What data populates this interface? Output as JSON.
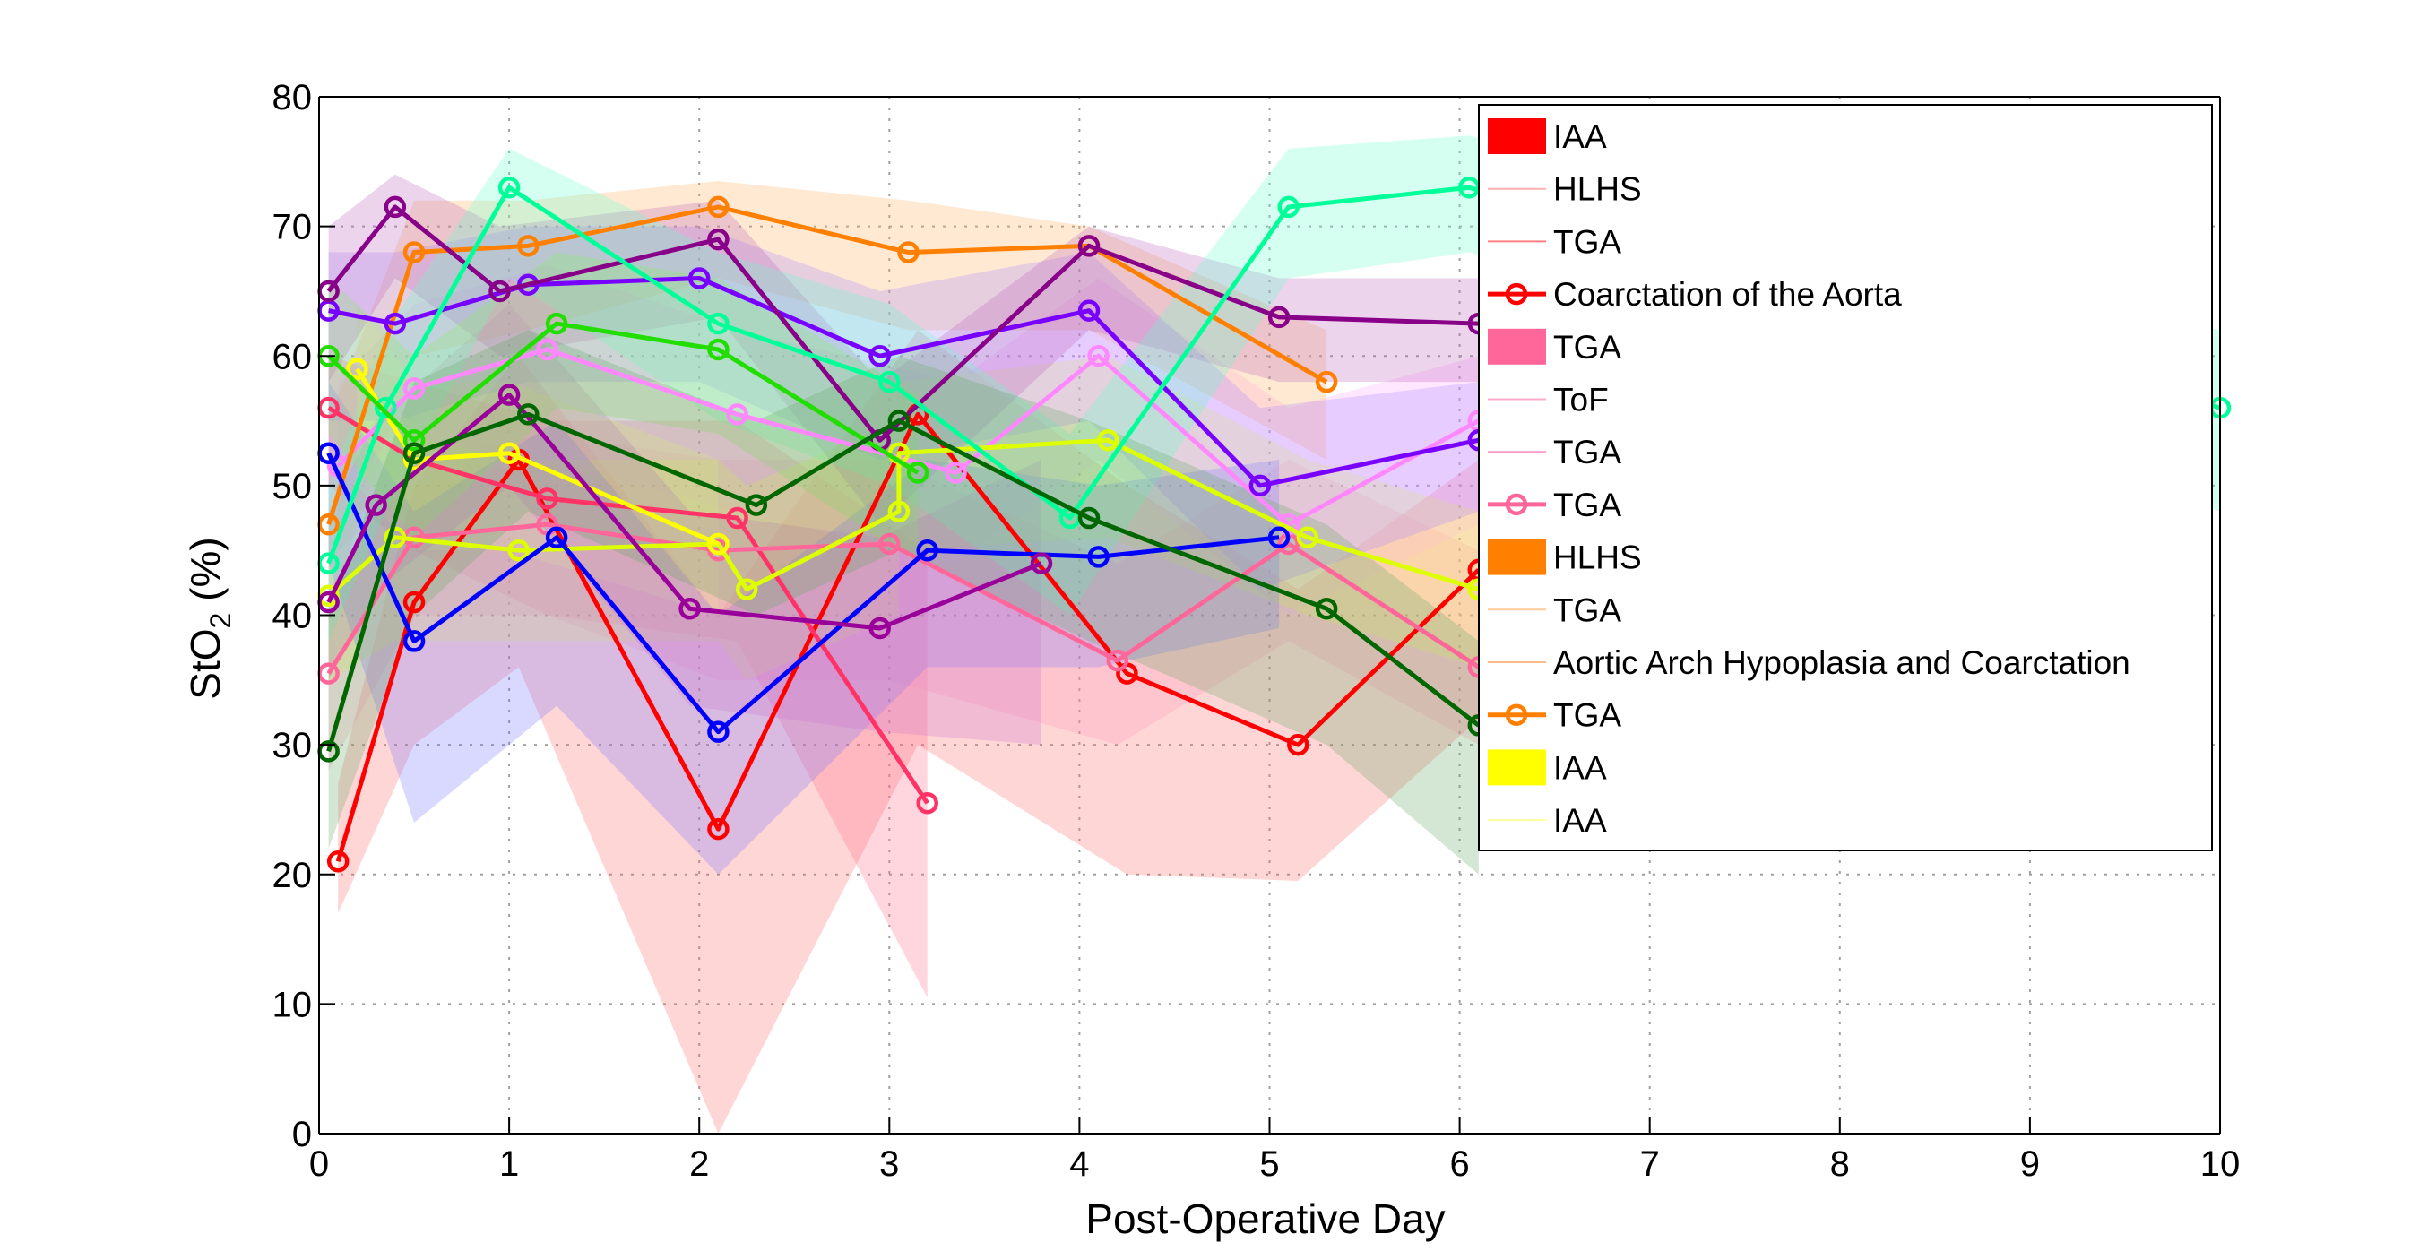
{
  "chart_data": {
    "type": "line",
    "xlabel": "Post-Operative Day",
    "ylabel": "StO",
    "ylabel_sub": "2",
    "ylabel_suffix": " (%)",
    "xlim": [
      0,
      10
    ],
    "ylim": [
      0,
      80
    ],
    "xticks": [
      "0",
      "1",
      "2",
      "3",
      "4",
      "5",
      "6",
      "7",
      "8",
      "9",
      "10"
    ],
    "yticks": [
      "0",
      "10",
      "20",
      "30",
      "40",
      "50",
      "60",
      "70",
      "80"
    ],
    "grid": true,
    "legend_position": "top-right",
    "series": [
      {
        "name": "Coarctation of the Aorta",
        "color": "#ff0000",
        "fill": "#ff6a6a",
        "x": [
          0.1,
          0.5,
          1.05,
          2.1,
          3.15,
          4.25,
          5.15,
          6.1
        ],
        "y": [
          21,
          41,
          52,
          23.5,
          55.5,
          35.5,
          30,
          43.5
        ],
        "lo": [
          17,
          30,
          36,
          0,
          30,
          20,
          19.5,
          32
        ],
        "hi": [
          27,
          50,
          60,
          40,
          62,
          50,
          42,
          52
        ]
      },
      {
        "name": "TGA",
        "color": "#ff3366",
        "fill": "#ff6a8a",
        "x": [
          0.05,
          0.5,
          1.2,
          2.2,
          3.2
        ],
        "y": [
          56,
          52,
          49,
          47.5,
          25.5
        ],
        "lo": [
          50,
          45,
          40,
          38,
          10.5
        ],
        "hi": [
          60,
          58,
          55,
          55,
          45
        ]
      },
      {
        "name": "TGA",
        "color": "#ff6699",
        "fill": "#ff99bb",
        "x": [
          0.05,
          0.5,
          1.2,
          2.1,
          3.0,
          4.2,
          5.1,
          6.1
        ],
        "y": [
          35.5,
          46,
          47,
          45,
          45.5,
          36.5,
          45.5,
          36
        ],
        "lo": [
          28,
          40,
          40,
          35,
          35,
          30,
          38,
          30
        ],
        "hi": [
          42,
          52,
          54,
          52,
          52,
          44,
          52,
          45
        ]
      },
      {
        "name": "ToF",
        "color": "#ff88ff",
        "fill": "#ffaaff",
        "x": [
          0.1,
          0.5,
          1.2,
          2.2,
          3.35,
          4.1,
          5.1,
          6.1
        ],
        "y": [
          51.5,
          57.5,
          60.5,
          55.5,
          51,
          60,
          47,
          55
        ],
        "lo": [
          45,
          50,
          52,
          48,
          44,
          52,
          40,
          47
        ],
        "hi": [
          58,
          64,
          67,
          62,
          58,
          66,
          56,
          60
        ]
      },
      {
        "name": "HLHS",
        "color": "#ff8000",
        "fill": "#ffb060",
        "x": [
          0.05,
          0.5,
          1.1,
          2.1,
          3.1,
          4.05,
          5.3
        ],
        "y": [
          47,
          68,
          68.5,
          71.5,
          68,
          68.5,
          58
        ],
        "lo": [
          40,
          60,
          62,
          66,
          62,
          62,
          52
        ],
        "hi": [
          55,
          72,
          72,
          73.5,
          72,
          70,
          62
        ]
      },
      {
        "name": "IAA",
        "color": "#ddff00",
        "fill": "#eeff55",
        "x": [
          0.05,
          0.4,
          1.05,
          2.1,
          2.25,
          3.05,
          3.05,
          4.15,
          5.2,
          6.1
        ],
        "y": [
          41.5,
          46,
          45,
          45.5,
          42,
          48,
          52.5,
          53.5,
          46,
          42
        ],
        "lo": [
          35,
          38,
          38,
          38,
          35,
          40,
          45,
          46,
          40,
          36
        ],
        "hi": [
          48,
          54,
          52,
          52,
          50,
          55,
          58,
          60,
          52,
          48
        ]
      },
      {
        "name": "",
        "color": "#ffff00",
        "fill": "#ffff88",
        "x": [
          0.2,
          0.5,
          1.0,
          2.1
        ],
        "y": [
          59,
          52,
          52.5,
          45.5
        ],
        "lo": [
          50,
          45,
          45,
          40
        ],
        "hi": [
          64,
          58,
          58,
          52
        ]
      },
      {
        "name": "",
        "color": "#0000ff",
        "fill": "#7777ff",
        "x": [
          0.05,
          0.5,
          1.25,
          2.1,
          3.2,
          4.1,
          5.05
        ],
        "y": [
          52.5,
          38,
          46,
          31,
          45,
          44.5,
          46
        ],
        "lo": [
          44,
          24,
          33,
          20,
          36,
          36,
          39
        ],
        "hi": [
          58,
          48,
          55,
          40,
          52,
          50,
          52
        ]
      },
      {
        "name": "",
        "color": "#7700ff",
        "fill": "#aa88ff",
        "x": [
          0.05,
          0.4,
          1.1,
          2.0,
          2.95,
          4.05,
          4.95,
          6.1
        ],
        "y": [
          63.5,
          62.5,
          65.5,
          66,
          60,
          63.5,
          50,
          53.5
        ],
        "lo": [
          55,
          55,
          58,
          58,
          52,
          55,
          42,
          48
        ],
        "hi": [
          68,
          68,
          70,
          70,
          65,
          68,
          56,
          58
        ]
      },
      {
        "name": "",
        "color": "#880088",
        "fill": "#bb66bb",
        "x": [
          0.05,
          0.4,
          0.95,
          2.1,
          2.95,
          4.05,
          5.05,
          6.1
        ],
        "y": [
          65,
          71.5,
          65,
          69,
          53.5,
          68.5,
          63,
          62.5
        ],
        "lo": [
          58,
          66,
          60,
          63,
          47,
          62,
          58,
          58
        ],
        "hi": [
          70,
          74,
          70,
          72,
          58,
          70,
          66,
          66
        ]
      },
      {
        "name": "",
        "color": "#990099",
        "fill": "#cc77cc",
        "x": [
          0.05,
          0.3,
          1.0,
          1.95,
          2.95,
          3.8
        ],
        "y": [
          41,
          48.5,
          57,
          40.5,
          39,
          44
        ],
        "lo": [
          35,
          42,
          50,
          33,
          31,
          30
        ],
        "hi": [
          48,
          55,
          64,
          48,
          46,
          52
        ]
      },
      {
        "name": "",
        "color": "#00ff99",
        "fill": "#66ffcc",
        "x": [
          0.05,
          0.35,
          1.0,
          2.1,
          3.0,
          3.95,
          5.1,
          6.05,
          10.0
        ],
        "y": [
          44,
          56,
          73,
          62.5,
          58,
          47.5,
          71.5,
          73,
          56
        ],
        "lo": [
          38,
          48,
          66,
          55,
          50,
          40,
          66,
          68,
          48
        ],
        "hi": [
          50,
          62,
          76,
          68,
          64,
          54,
          76,
          77,
          62
        ]
      },
      {
        "name": "",
        "color": "#22dd00",
        "fill": "#88ee66",
        "x": [
          0.05,
          0.5,
          1.25,
          2.1,
          3.15
        ],
        "y": [
          60,
          53.5,
          62.5,
          60.5,
          51
        ],
        "lo": [
          54,
          46,
          56,
          54,
          44
        ],
        "hi": [
          66,
          60,
          68,
          66,
          57
        ]
      },
      {
        "name": "",
        "color": "#006600",
        "fill": "#66aa66",
        "x": [
          0.05,
          0.5,
          1.1,
          2.3,
          3.05,
          4.05,
          5.3,
          6.1
        ],
        "y": [
          29.5,
          52.5,
          55.5,
          48.5,
          55,
          47.5,
          40.5,
          31.5
        ],
        "lo": [
          22,
          40,
          48,
          40,
          45,
          38,
          30,
          20
        ],
        "hi": [
          40,
          58,
          62,
          55,
          60,
          55,
          47,
          38
        ]
      }
    ],
    "legend": [
      {
        "label": "IAA",
        "style": "patch",
        "color": "#ff0000"
      },
      {
        "label": "HLHS",
        "style": "line-faint",
        "color": "#ffb0b0"
      },
      {
        "label": "TGA",
        "style": "line-faint",
        "color": "#ff8080"
      },
      {
        "label": "Coarctation of the Aorta",
        "style": "line-marker",
        "color": "#ff0000"
      },
      {
        "label": "TGA",
        "style": "patch",
        "color": "#ff6699"
      },
      {
        "label": "ToF",
        "style": "line-faint",
        "color": "#ffaacc"
      },
      {
        "label": "TGA",
        "style": "line-faint",
        "color": "#ff99cc"
      },
      {
        "label": "TGA",
        "style": "line-marker",
        "color": "#ff6699"
      },
      {
        "label": "HLHS",
        "style": "patch",
        "color": "#ff8000"
      },
      {
        "label": "TGA",
        "style": "line-faint",
        "color": "#ffcc99"
      },
      {
        "label": "Aortic Arch Hypoplasia and Coarctation",
        "style": "line-faint",
        "color": "#ffbb88"
      },
      {
        "label": "TGA",
        "style": "line-marker",
        "color": "#ff8000"
      },
      {
        "label": "IAA",
        "style": "patch",
        "color": "#ffff00"
      },
      {
        "label": "IAA",
        "style": "line-faint",
        "color": "#ffff99"
      }
    ]
  }
}
